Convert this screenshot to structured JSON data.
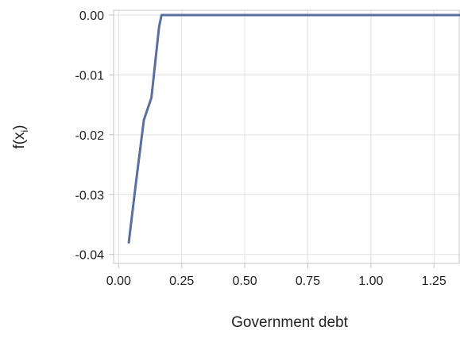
{
  "chart_data": {
    "type": "line",
    "xlabel": "Government debt",
    "ylabel_main": "f(x",
    "ylabel_sub": "i",
    "ylabel_close": ")",
    "xlim": [
      -0.02,
      1.35
    ],
    "ylim": [
      -0.0415,
      0.0008
    ],
    "x_ticks": [
      0.0,
      0.25,
      0.5,
      0.75,
      1.0,
      1.25
    ],
    "x_tick_labels": [
      "0.00",
      "0.25",
      "0.50",
      "0.75",
      "1.00",
      "1.25"
    ],
    "y_ticks": [
      0.0,
      -0.01,
      -0.02,
      -0.03,
      -0.04
    ],
    "y_tick_labels": [
      "0.00",
      "-0.01",
      "-0.02",
      "-0.03",
      "-0.04"
    ],
    "grid": true,
    "series": [
      {
        "x": [
          0.04,
          0.07,
          0.1,
          0.13,
          0.16,
          0.17,
          0.2,
          0.5,
          1.0,
          1.35
        ],
        "y": [
          -0.038,
          -0.0275,
          -0.0175,
          -0.0138,
          -0.002,
          0.0,
          0.0,
          0.0,
          0.0,
          0.0
        ],
        "color": "#5a6f9e"
      }
    ],
    "colors": {
      "line": "#5a6f9e",
      "grid": "#e2e2e2",
      "frame": "#c4c4c4"
    }
  }
}
